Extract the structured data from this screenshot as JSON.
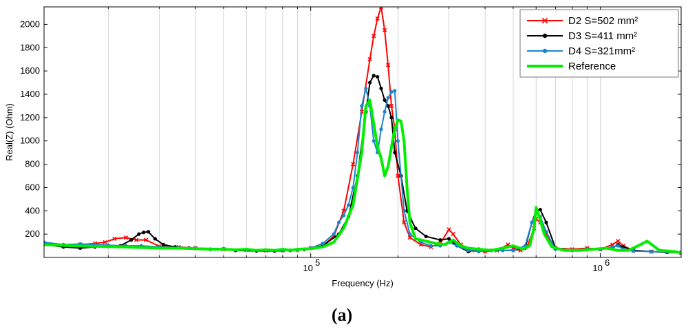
{
  "chart_data": {
    "type": "line",
    "x_scale": "log",
    "xlabel": "Frequency (Hz)",
    "ylabel": "Real(Z)  (Ohm)",
    "xlim": [
      12000,
      1900000
    ],
    "ylim": [
      0,
      2150
    ],
    "x_ticks": [
      {
        "value": 100000,
        "base": "10",
        "exp": "5"
      },
      {
        "value": 1000000,
        "base": "10",
        "exp": "6"
      }
    ],
    "y_ticks": [
      200,
      400,
      600,
      800,
      1000,
      1200,
      1400,
      1600,
      1800,
      2000
    ],
    "grid": "vertical",
    "legend_position": "top-right",
    "caption": "(a)",
    "series": [
      {
        "name": "D2 S=502 mm²",
        "color": "#ff0000",
        "marker": "x",
        "x": [
          12000,
          14000,
          16000,
          18000,
          19500,
          21000,
          23000,
          25000,
          27000,
          30000,
          35000,
          40000,
          50000,
          60000,
          70000,
          80000,
          90000,
          100000,
          110000,
          120000,
          130000,
          140000,
          150000,
          160000,
          165000,
          170000,
          175000,
          180000,
          185000,
          190000,
          195000,
          200000,
          210000,
          220000,
          240000,
          260000,
          280000,
          300000,
          310000,
          330000,
          360000,
          400000,
          440000,
          480000,
          500000,
          530000,
          560000,
          590000,
          600000,
          620000,
          650000,
          700000,
          800000,
          900000,
          1000000,
          1100000,
          1150000,
          1200000,
          1300000,
          1500000,
          1700000,
          1900000
        ],
        "y": [
          120,
          100,
          110,
          120,
          130,
          160,
          170,
          150,
          150,
          95,
          90,
          80,
          70,
          65,
          60,
          60,
          65,
          80,
          100,
          180,
          400,
          800,
          1250,
          1700,
          1900,
          2050,
          2150,
          1950,
          1650,
          1300,
          1100,
          700,
          300,
          170,
          110,
          90,
          120,
          240,
          200,
          110,
          60,
          50,
          60,
          110,
          80,
          60,
          100,
          250,
          330,
          300,
          200,
          80,
          70,
          80,
          70,
          110,
          140,
          100,
          60,
          50,
          50,
          40
        ]
      },
      {
        "name": "D3 S=411 mm²",
        "color": "#000000",
        "marker": "dot",
        "x": [
          12000,
          14000,
          16000,
          18000,
          20000,
          22000,
          24000,
          25500,
          26500,
          27500,
          29000,
          31000,
          34000,
          38000,
          45000,
          55000,
          65000,
          75000,
          85000,
          95000,
          110000,
          125000,
          135000,
          145000,
          155000,
          160000,
          165000,
          170000,
          175000,
          180000,
          185000,
          190000,
          195000,
          205000,
          215000,
          230000,
          250000,
          280000,
          300000,
          320000,
          350000,
          380000,
          420000,
          460000,
          500000,
          550000,
          580000,
          600000,
          620000,
          650000,
          700000,
          800000,
          900000,
          1000000,
          1100000,
          1150000,
          1200000,
          1300000,
          1500000,
          1700000,
          1900000
        ],
        "y": [
          110,
          90,
          80,
          90,
          95,
          100,
          150,
          200,
          215,
          220,
          160,
          110,
          90,
          80,
          70,
          60,
          55,
          55,
          60,
          70,
          100,
          200,
          350,
          700,
          1250,
          1500,
          1560,
          1550,
          1450,
          1350,
          1300,
          1200,
          900,
          700,
          400,
          250,
          180,
          150,
          160,
          100,
          50,
          70,
          60,
          60,
          60,
          80,
          300,
          400,
          410,
          300,
          80,
          60,
          70,
          70,
          80,
          110,
          90,
          60,
          50,
          45,
          40
        ]
      },
      {
        "name": "D4 S=321mm²",
        "color": "#1a85cc",
        "marker": "dot",
        "x": [
          12000,
          14000,
          16000,
          18000,
          20000,
          23000,
          26000,
          30000,
          35000,
          40000,
          50000,
          60000,
          70000,
          80000,
          90000,
          100000,
          110000,
          120000,
          125000,
          130000,
          135000,
          140000,
          145000,
          150000,
          155000,
          160000,
          165000,
          170000,
          175000,
          180000,
          185000,
          190000,
          195000,
          200000,
          210000,
          220000,
          240000,
          260000,
          280000,
          300000,
          320000,
          350000,
          380000,
          420000,
          460000,
          500000,
          550000,
          580000,
          600000,
          620000,
          650000,
          700000,
          800000,
          900000,
          1000000,
          1100000,
          1150000,
          1200000,
          1300000,
          1500000,
          1700000,
          1900000
        ],
        "y": [
          130,
          110,
          115,
          110,
          105,
          100,
          100,
          90,
          85,
          80,
          75,
          65,
          60,
          60,
          65,
          80,
          120,
          200,
          300,
          360,
          450,
          600,
          900,
          1300,
          1450,
          1300,
          1000,
          900,
          1100,
          1250,
          1370,
          1420,
          1430,
          1000,
          400,
          200,
          130,
          100,
          100,
          130,
          100,
          60,
          50,
          60,
          60,
          60,
          100,
          300,
          380,
          350,
          220,
          70,
          60,
          70,
          70,
          90,
          100,
          70,
          55,
          50,
          50,
          45
        ]
      },
      {
        "name": "Reference",
        "color": "#00ee00",
        "marker": "none",
        "x": [
          12000,
          15000,
          18000,
          22000,
          26000,
          30000,
          35000,
          40000,
          45000,
          50000,
          55000,
          60000,
          65000,
          70000,
          75000,
          80000,
          85000,
          90000,
          100000,
          110000,
          120000,
          130000,
          140000,
          150000,
          155000,
          160000,
          165000,
          170000,
          175000,
          180000,
          185000,
          190000,
          195000,
          200000,
          205000,
          210000,
          215000,
          220000,
          230000,
          250000,
          270000,
          290000,
          310000,
          330000,
          350000,
          380000,
          420000,
          460000,
          500000,
          540000,
          570000,
          590000,
          600000,
          615000,
          640000,
          680000,
          750000,
          850000,
          950000,
          1050000,
          1150000,
          1250000,
          1350000,
          1450000,
          1600000,
          1800000,
          1900000
        ],
        "y": [
          110,
          100,
          95,
          90,
          85,
          80,
          80,
          75,
          70,
          70,
          65,
          70,
          60,
          65,
          60,
          70,
          60,
          70,
          75,
          90,
          130,
          250,
          450,
          900,
          1300,
          1350,
          1150,
          950,
          850,
          700,
          780,
          950,
          1100,
          1180,
          1170,
          1000,
          600,
          300,
          160,
          140,
          120,
          110,
          150,
          100,
          80,
          70,
          60,
          80,
          100,
          70,
          100,
          250,
          430,
          350,
          200,
          90,
          60,
          60,
          70,
          80,
          60,
          60,
          100,
          140,
          60,
          50,
          40
        ]
      }
    ]
  }
}
